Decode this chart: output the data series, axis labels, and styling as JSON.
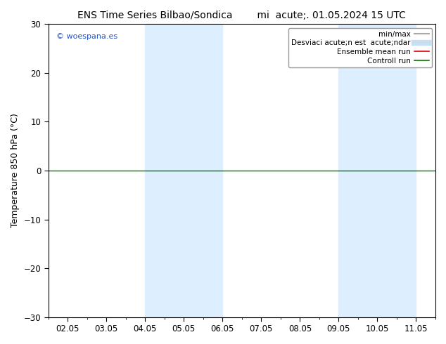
{
  "title_left": "ENS Time Series Bilbao/Sondica",
  "title_right": "mi  acute;. 01.05.2024 15 UTC",
  "ylabel": "Temperature 850 hPa (°C)",
  "ylim": [
    -30,
    30
  ],
  "yticks": [
    -30,
    -20,
    -10,
    0,
    10,
    20,
    30
  ],
  "xlabels": [
    "02.05",
    "03.05",
    "04.05",
    "05.05",
    "06.05",
    "07.05",
    "08.05",
    "09.05",
    "10.05",
    "11.05"
  ],
  "x_positions": [
    0,
    1,
    2,
    3,
    4,
    5,
    6,
    7,
    8,
    9
  ],
  "shaded_bands": [
    {
      "xmin": 2.0,
      "xmax": 4.0
    },
    {
      "xmin": 7.0,
      "xmax": 9.0
    }
  ],
  "shaded_color": "#ddeeff",
  "background_color": "#ffffff",
  "hline_y": 0,
  "hline_color": "#007700",
  "watermark": "© woespana.es",
  "legend_entries": [
    {
      "label": "min/max",
      "color": "#aaaaaa",
      "lw": 1.5
    },
    {
      "label": "Desviaci acute;n est  acute;ndar",
      "color": "#c8dff0",
      "lw": 6
    },
    {
      "label": "Ensemble mean run",
      "color": "#dd0000",
      "lw": 1.2
    },
    {
      "label": "Controll run",
      "color": "#007700",
      "lw": 1.2
    }
  ],
  "title_fontsize": 10,
  "axis_fontsize": 9,
  "tick_fontsize": 8.5,
  "legend_fontsize": 7.5
}
